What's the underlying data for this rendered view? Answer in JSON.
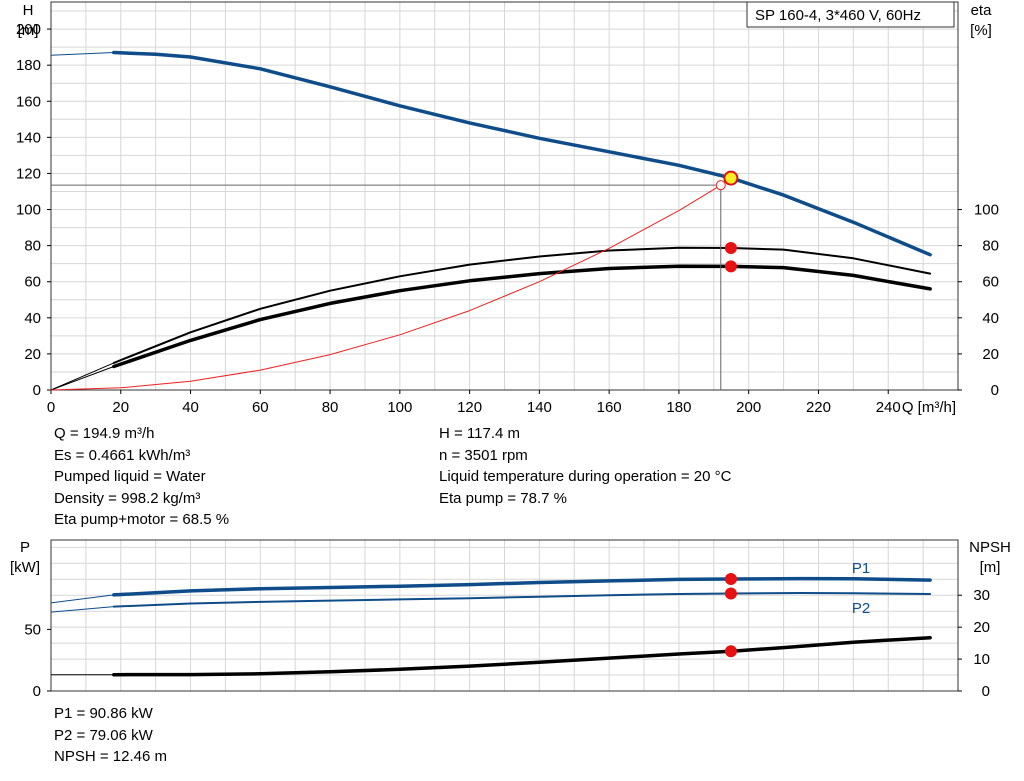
{
  "chart_data": [
    {
      "type": "line",
      "label_left": "H",
      "unit_left": "[m]",
      "label_right": "eta",
      "unit_right": "[%]",
      "xlabel": "Q [m³/h]",
      "xlim": [
        0,
        260
      ],
      "x_ticks": [
        0,
        20,
        40,
        60,
        80,
        100,
        120,
        140,
        160,
        180,
        200,
        220,
        240
      ],
      "ylim_left": [
        0,
        215
      ],
      "y_ticks_left": [
        0,
        20,
        40,
        60,
        80,
        100,
        120,
        140,
        160,
        180,
        200
      ],
      "y_ticks_right": [
        0,
        20,
        40,
        60,
        80,
        100
      ],
      "grid": true,
      "legend_box": "SP 160-4, 3*460 V, 60Hz",
      "series": [
        {
          "role": "head",
          "color": "#0f4c8a",
          "extension": [
            [
              0,
              185.5
            ],
            [
              18,
              187
            ]
          ],
          "points": [
            [
              18,
              187
            ],
            [
              30,
              186
            ],
            [
              40,
              184.5
            ],
            [
              60,
              178
            ],
            [
              80,
              168
            ],
            [
              100,
              157.5
            ],
            [
              120,
              148
            ],
            [
              140,
              139.5
            ],
            [
              160,
              132
            ],
            [
              180,
              124.5
            ],
            [
              195,
              117.4
            ],
            [
              210,
              108
            ],
            [
              230,
              93
            ],
            [
              252,
              75
            ]
          ]
        },
        {
          "role": "eta-pump",
          "color": "#000000",
          "extension": [
            [
              0,
              0
            ],
            [
              18,
              15
            ]
          ],
          "points": [
            [
              18,
              15
            ],
            [
              40,
              32
            ],
            [
              60,
              45
            ],
            [
              80,
              55
            ],
            [
              100,
              63
            ],
            [
              120,
              69.5
            ],
            [
              140,
              74
            ],
            [
              160,
              77.3
            ],
            [
              180,
              78.8
            ],
            [
              195,
              78.7
            ],
            [
              210,
              77.8
            ],
            [
              230,
              73
            ],
            [
              252,
              64.5
            ]
          ]
        },
        {
          "role": "eta-pump-motor",
          "color": "#000000",
          "extension": [
            [
              0,
              0
            ],
            [
              18,
              13
            ]
          ],
          "points": [
            [
              18,
              13
            ],
            [
              40,
              27.5
            ],
            [
              60,
              39
            ],
            [
              80,
              48
            ],
            [
              100,
              55
            ],
            [
              120,
              60.5
            ],
            [
              140,
              64.5
            ],
            [
              160,
              67.3
            ],
            [
              180,
              68.6
            ],
            [
              195,
              68.5
            ],
            [
              210,
              67.8
            ],
            [
              230,
              63.5
            ],
            [
              252,
              56
            ]
          ]
        },
        {
          "role": "system-curve",
          "color": "#ee2222",
          "points": [
            [
              0,
              0
            ],
            [
              20,
              1.2
            ],
            [
              40,
              4.9
            ],
            [
              60,
              11
            ],
            [
              80,
              19.6
            ],
            [
              100,
              30.6
            ],
            [
              120,
              44
            ],
            [
              140,
              60
            ],
            [
              160,
              78.5
            ],
            [
              180,
              99.4
            ],
            [
              192,
              113.5
            ]
          ]
        }
      ],
      "operating_point": {
        "q": 194.9,
        "h": 117.4,
        "eta_pump": 78.7,
        "eta_pump_motor": 68.5
      },
      "required_point": {
        "q": 192,
        "h": 113.5
      }
    },
    {
      "type": "line",
      "label_left": "P",
      "unit_left": "[kW]",
      "label_right": "NPSH",
      "unit_right": "[m]",
      "xlim": [
        0,
        260
      ],
      "ylim_left": [
        0,
        122.5
      ],
      "y_ticks_left": [
        0,
        50
      ],
      "ylim_right": [
        0,
        47.3
      ],
      "y_ticks_right": [
        0,
        10,
        20,
        30
      ],
      "grid": true,
      "series": [
        {
          "name": "P1",
          "color": "#0f4c8a",
          "extension": [
            [
              0,
              71.5
            ],
            [
              18,
              78
            ]
          ],
          "points": [
            [
              18,
              78
            ],
            [
              40,
              81.2
            ],
            [
              60,
              83
            ],
            [
              80,
              84
            ],
            [
              100,
              85
            ],
            [
              120,
              86.3
            ],
            [
              140,
              88
            ],
            [
              160,
              89.3
            ],
            [
              180,
              90.5
            ],
            [
              195,
              90.86
            ],
            [
              215,
              91.2
            ],
            [
              230,
              91
            ],
            [
              252,
              90
            ]
          ]
        },
        {
          "name": "P2",
          "color": "#0f4c8a",
          "extension": [
            [
              0,
              64
            ],
            [
              18,
              68.5
            ]
          ],
          "points": [
            [
              18,
              68.5
            ],
            [
              40,
              71
            ],
            [
              60,
              72.3
            ],
            [
              80,
              73.3
            ],
            [
              100,
              74.3
            ],
            [
              120,
              75.3
            ],
            [
              140,
              76.5
            ],
            [
              160,
              77.7
            ],
            [
              180,
              78.7
            ],
            [
              195,
              79.06
            ],
            [
              215,
              79.5
            ],
            [
              230,
              79.3
            ],
            [
              252,
              78.7
            ]
          ]
        },
        {
          "role": "npsh",
          "color": "#000000",
          "axis": "right",
          "extension": [
            [
              0,
              5.1
            ],
            [
              18,
              5.1
            ]
          ],
          "points": [
            [
              18,
              5.1
            ],
            [
              40,
              5.15
            ],
            [
              60,
              5.4
            ],
            [
              80,
              6
            ],
            [
              100,
              6.8
            ],
            [
              120,
              7.8
            ],
            [
              140,
              9
            ],
            [
              160,
              10.3
            ],
            [
              180,
              11.6
            ],
            [
              195,
              12.46
            ],
            [
              210,
              13.6
            ],
            [
              230,
              15.3
            ],
            [
              252,
              16.7
            ]
          ]
        }
      ],
      "operating_point": {
        "q": 194.9,
        "p1": 90.86,
        "p2": 79.06,
        "npsh": 12.46
      }
    }
  ],
  "readout": {
    "col1": [
      "Q = 194.9 m³/h",
      "Es = 0.4661 kWh/m³",
      "Pumped liquid = Water",
      "Density = 998.2 kg/m³",
      "Eta pump+motor = 68.5 %"
    ],
    "col2": [
      "H = 117.4 m",
      "n = 3501 rpm",
      "Liquid temperature during operation = 20 °C",
      "Eta pump = 78.7 %"
    ],
    "bottom": [
      "P1 = 90.86 kW",
      "P2 = 79.06 kW",
      "NPSH = 12.46 m"
    ]
  }
}
